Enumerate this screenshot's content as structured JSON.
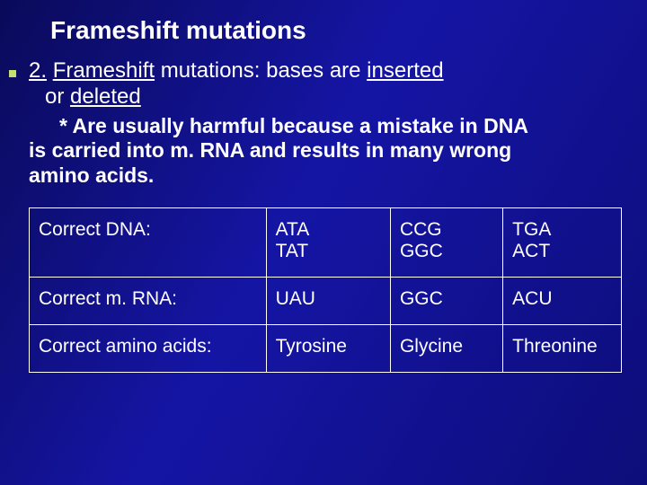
{
  "title": "Frameshift mutations",
  "heading_number": "2.",
  "heading_underlined": "Frameshift",
  "heading_rest": " mutations: bases are ",
  "heading_u_inserted": "inserted",
  "line2_prefix": "or ",
  "line2_deleted": "deleted",
  "star_prefix": "*",
  "star_text1": " Are usually harmful because a mistake in DNA",
  "star_text2": "is carried into m. RNA and results in many wrong",
  "star_text3": "amino acids.",
  "table": {
    "rows": [
      {
        "label": "Correct DNA:",
        "c1a": "ATA",
        "c1b": "TAT",
        "c2a": "CCG",
        "c2b": "GGC",
        "c3a": "TGA",
        "c3b": "ACT"
      },
      {
        "label": "Correct m. RNA:",
        "c1a": "UAU",
        "c1b": "",
        "c2a": "GGC",
        "c2b": "",
        "c3a": "ACU",
        "c3b": ""
      },
      {
        "label": "Correct amino acids:",
        "c1a": "Tyrosine",
        "c1b": "",
        "c2a": "Glycine",
        "c2b": "",
        "c3a": "Threonine",
        "c3b": ""
      }
    ]
  },
  "colors": {
    "bg_grad_start": "#0a0a5a",
    "bg_grad_mid": "#1515a5",
    "bg_grad_end": "#0d0d7a",
    "text": "#ffffff",
    "bullet": "#c6e070",
    "border": "#ffffff"
  },
  "fontsizes": {
    "title": 28,
    "body": 24,
    "star": 23,
    "table": 21
  }
}
